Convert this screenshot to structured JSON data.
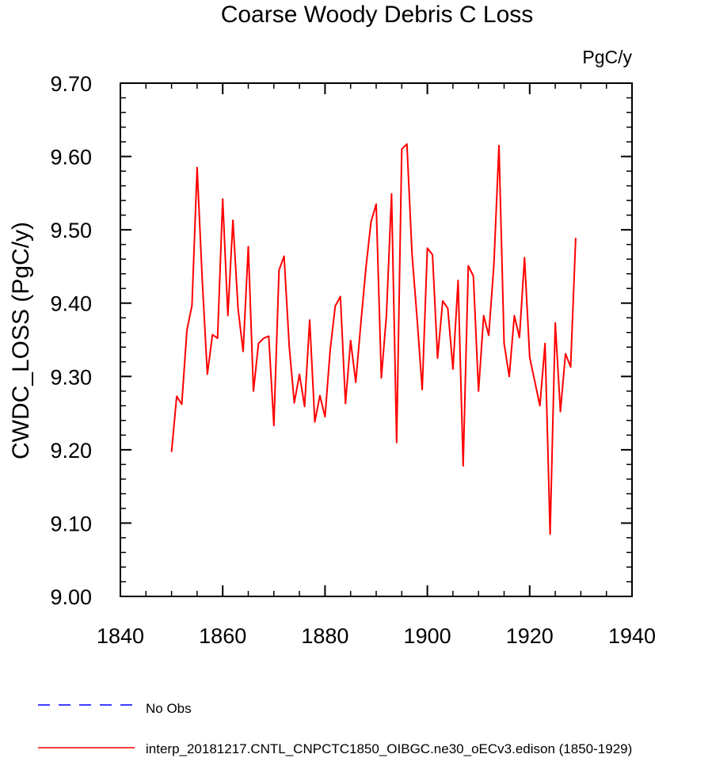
{
  "chart_data": {
    "type": "line",
    "title": "Coarse Woody Debris C Loss",
    "units_label": "PgC/y",
    "xlabel": "",
    "ylabel": "CWDC_LOSS  (PgC/y)",
    "xlim": [
      1840,
      1940
    ],
    "ylim": [
      9.0,
      9.7
    ],
    "xticks": [
      1840,
      1860,
      1880,
      1900,
      1920,
      1940
    ],
    "yticks": [
      9.0,
      9.1,
      9.2,
      9.3,
      9.4,
      9.5,
      9.6,
      9.7
    ],
    "xtick_labels": [
      "1840",
      "1860",
      "1880",
      "1900",
      "1920",
      "1940"
    ],
    "ytick_labels": [
      "9.00",
      "9.10",
      "9.20",
      "9.30",
      "9.40",
      "9.50",
      "9.60",
      "9.70"
    ],
    "grid": false,
    "legend_position": "bottom",
    "legend": [
      {
        "name": "No Obs",
        "color": "#0000ff",
        "style": "dashed"
      },
      {
        "name": "interp_20181217.CNTL_CNPCTC1850_OIBGC.ne30_oECv3.edison (1850-1929)",
        "color": "#ff0000",
        "style": "solid"
      }
    ],
    "series": [
      {
        "name": "interp_20181217.CNTL_CNPCTC1850_OIBGC.ne30_oECv3.edison (1850-1929)",
        "color": "#ff0000",
        "x": [
          1850,
          1851,
          1852,
          1853,
          1854,
          1855,
          1856,
          1857,
          1858,
          1859,
          1860,
          1861,
          1862,
          1863,
          1864,
          1865,
          1866,
          1867,
          1868,
          1869,
          1870,
          1871,
          1872,
          1873,
          1874,
          1875,
          1876,
          1877,
          1878,
          1879,
          1880,
          1881,
          1882,
          1883,
          1884,
          1885,
          1886,
          1887,
          1888,
          1889,
          1890,
          1891,
          1892,
          1893,
          1894,
          1895,
          1896,
          1897,
          1898,
          1899,
          1900,
          1901,
          1902,
          1903,
          1904,
          1905,
          1906,
          1907,
          1908,
          1909,
          1910,
          1911,
          1912,
          1913,
          1914,
          1915,
          1916,
          1917,
          1918,
          1919,
          1920,
          1921,
          1922,
          1923,
          1924,
          1925,
          1926,
          1927,
          1928,
          1929
        ],
        "values": [
          9.197,
          9.273,
          9.262,
          9.363,
          9.397,
          9.585,
          9.431,
          9.303,
          9.357,
          9.352,
          9.542,
          9.383,
          9.513,
          9.392,
          9.334,
          9.477,
          9.28,
          9.345,
          9.352,
          9.355,
          9.233,
          9.445,
          9.464,
          9.341,
          9.264,
          9.303,
          9.259,
          9.377,
          9.238,
          9.274,
          9.245,
          9.336,
          9.396,
          9.409,
          9.263,
          9.349,
          9.292,
          9.372,
          9.449,
          9.511,
          9.535,
          9.298,
          9.383,
          9.549,
          9.21,
          9.61,
          9.617,
          9.468,
          9.378,
          9.282,
          9.475,
          9.466,
          9.325,
          9.403,
          9.393,
          9.31,
          9.431,
          9.178,
          9.451,
          9.437,
          9.28,
          9.383,
          9.356,
          9.452,
          9.615,
          9.345,
          9.3,
          9.383,
          9.353,
          9.462,
          9.326,
          9.293,
          9.26,
          9.345,
          9.085,
          9.373,
          9.252,
          9.331,
          9.313,
          9.489
        ]
      }
    ]
  }
}
